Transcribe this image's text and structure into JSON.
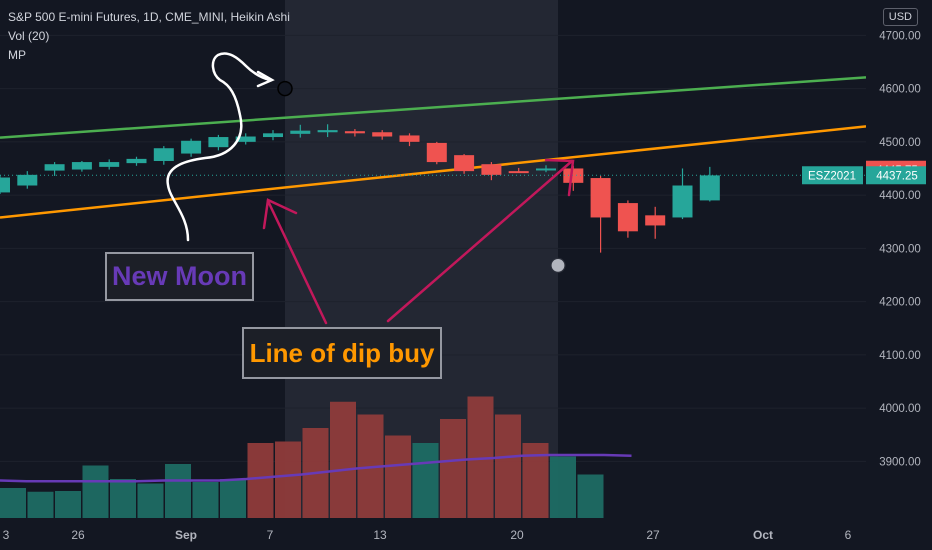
{
  "legend": {
    "symbol_line": "S&P 500 E-mini Futures, 1D, CME_MINI, Heikin Ashi",
    "vol_line": "Vol (20)",
    "mp_line": "MP"
  },
  "currency_button": "USD",
  "annotations": {
    "new_moon": "New Moon",
    "dip_buy": "Line of dip buy"
  },
  "colors": {
    "background": "#131722",
    "up_candle": "#26a69a",
    "down_candle": "#ef5350",
    "upper_trendline": "#4caf50",
    "lower_trendline": "#ff9800",
    "arrows": "#c2185b",
    "volume_ma": "#673ab7"
  },
  "chart_data": {
    "type": "candlestick",
    "y_axis": {
      "ticks": [
        3900,
        4000,
        4100,
        4200,
        4300,
        4400,
        4500,
        4600,
        4700
      ],
      "tick_labels": [
        "3900.00",
        "4000.00",
        "4100.00",
        "4200.00",
        "4300.00",
        "4400.00",
        "4500.00",
        "4600.00",
        "4700.00"
      ],
      "range": [
        3850,
        4710
      ]
    },
    "x_axis": {
      "labels": [
        "3",
        "26",
        "Sep",
        "7",
        "13",
        "20",
        "27",
        "Oct",
        "6"
      ]
    },
    "current_price_label": {
      "symbol": "ESZ2021",
      "value": "4437.25"
    },
    "other_price_label": {
      "value": "4445.75"
    },
    "candles": [
      {
        "o": 4405,
        "h": 4438,
        "l": 4402,
        "c": 4433
      },
      {
        "o": 4418,
        "h": 4445,
        "l": 4412,
        "c": 4438
      },
      {
        "o": 4446,
        "h": 4462,
        "l": 4436,
        "c": 4458
      },
      {
        "o": 4448,
        "h": 4464,
        "l": 4444,
        "c": 4462
      },
      {
        "o": 4453,
        "h": 4467,
        "l": 4448,
        "c": 4462
      },
      {
        "o": 4460,
        "h": 4472,
        "l": 4455,
        "c": 4468
      },
      {
        "o": 4464,
        "h": 4492,
        "l": 4457,
        "c": 4488
      },
      {
        "o": 4478,
        "h": 4506,
        "l": 4472,
        "c": 4502
      },
      {
        "o": 4490,
        "h": 4513,
        "l": 4484,
        "c": 4509
      },
      {
        "o": 4500,
        "h": 4516,
        "l": 4495,
        "c": 4510
      },
      {
        "o": 4509,
        "h": 4522,
        "l": 4503,
        "c": 4516
      },
      {
        "o": 4515,
        "h": 4532,
        "l": 4508,
        "c": 4521
      },
      {
        "o": 4518,
        "h": 4533,
        "l": 4509,
        "c": 4522
      },
      {
        "o": 4520,
        "h": 4524,
        "l": 4510,
        "c": 4516
      },
      {
        "o": 4518,
        "h": 4522,
        "l": 4504,
        "c": 4510
      },
      {
        "o": 4512,
        "h": 4516,
        "l": 4492,
        "c": 4500
      },
      {
        "o": 4498,
        "h": 4500,
        "l": 4458,
        "c": 4462
      },
      {
        "o": 4475,
        "h": 4477,
        "l": 4440,
        "c": 4445
      },
      {
        "o": 4458,
        "h": 4462,
        "l": 4428,
        "c": 4438
      },
      {
        "o": 4445,
        "h": 4451,
        "l": 4442,
        "c": 4444
      },
      {
        "o": 4448,
        "h": 4456,
        "l": 4443,
        "c": 4450
      },
      {
        "o": 4450,
        "h": 4455,
        "l": 4408,
        "c": 4423
      },
      {
        "o": 4432,
        "h": 4436,
        "l": 4292,
        "c": 4358
      },
      {
        "o": 4385,
        "h": 4390,
        "l": 4320,
        "c": 4332
      },
      {
        "o": 4362,
        "h": 4378,
        "l": 4318,
        "c": 4343
      },
      {
        "o": 4358,
        "h": 4450,
        "l": 4355,
        "c": 4418
      },
      {
        "o": 4390,
        "h": 4453,
        "l": 4388,
        "c": 4437
      }
    ],
    "volume": [
      {
        "v": 0.4,
        "up": true
      },
      {
        "v": 0.35,
        "up": true
      },
      {
        "v": 0.36,
        "up": true
      },
      {
        "v": 0.7,
        "up": true
      },
      {
        "v": 0.52,
        "up": true
      },
      {
        "v": 0.46,
        "up": true
      },
      {
        "v": 0.72,
        "up": true
      },
      {
        "v": 0.48,
        "up": true
      },
      {
        "v": 0.52,
        "up": true
      },
      {
        "v": 1.0,
        "up": false
      },
      {
        "v": 1.02,
        "up": false
      },
      {
        "v": 1.2,
        "up": false
      },
      {
        "v": 1.55,
        "up": false
      },
      {
        "v": 1.38,
        "up": false
      },
      {
        "v": 1.1,
        "up": false
      },
      {
        "v": 1.0,
        "up": true
      },
      {
        "v": 1.32,
        "up": false
      },
      {
        "v": 1.62,
        "up": false
      },
      {
        "v": 1.38,
        "up": false
      },
      {
        "v": 1.0,
        "up": false
      },
      {
        "v": 0.82,
        "up": true
      },
      {
        "v": 0.58,
        "up": true
      }
    ],
    "volume_ma": [
      0.5,
      0.49,
      0.49,
      0.49,
      0.49,
      0.49,
      0.5,
      0.5,
      0.5,
      0.52,
      0.55,
      0.58,
      0.62,
      0.66,
      0.69,
      0.72,
      0.75,
      0.78,
      0.8,
      0.83,
      0.84,
      0.84,
      0.84,
      0.83
    ],
    "upper_trendline": [
      {
        "x": 0,
        "price": 4508
      },
      {
        "x": 866,
        "price": 4621
      }
    ],
    "lower_trendline": [
      {
        "x": 0,
        "price": 4358
      },
      {
        "x": 866,
        "price": 4529
      }
    ],
    "moon_markers": [
      {
        "phase": "new",
        "price": 4600
      },
      {
        "phase": "full",
        "price": 4268
      }
    ],
    "highlight_band": true
  }
}
